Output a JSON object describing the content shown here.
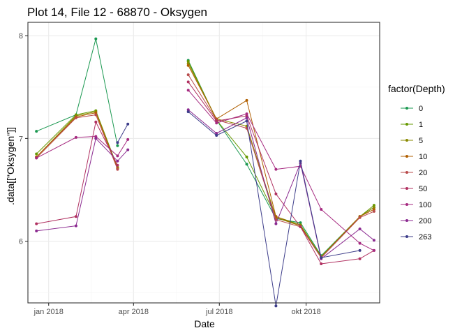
{
  "chart_data": {
    "type": "line",
    "title": "Plot 14, File 12 - 68870  -  Oksygen",
    "xlabel": "Date",
    "ylabel": ".data[[\"Oksygen\"]]",
    "x_type": "date",
    "xlim": [
      "2017-12-10",
      "2018-12-18"
    ],
    "ylim": [
      5.4,
      8.13
    ],
    "x_ticks": [
      {
        "date": "2018-01-01",
        "label": "jan 2018"
      },
      {
        "date": "2018-04-01",
        "label": "apr 2018"
      },
      {
        "date": "2018-07-01",
        "label": "jul 2018"
      },
      {
        "date": "2018-10-01",
        "label": "okt 2018"
      }
    ],
    "y_ticks": [
      6,
      7,
      8
    ],
    "grid": true,
    "legend": {
      "title": "factor(Depth)",
      "position": "right"
    },
    "series": [
      {
        "name": "0",
        "color": "#1a9850",
        "segments": [
          [
            [
              "2017-12-19",
              7.07
            ],
            [
              "2018-01-30",
              7.23
            ],
            [
              "2018-02-20",
              7.97
            ],
            [
              "2018-03-15",
              6.93
            ]
          ],
          [
            [
              "2018-05-29",
              7.76
            ],
            [
              "2018-06-28",
              7.18
            ],
            [
              "2018-07-30",
              6.75
            ],
            [
              "2018-08-30",
              6.22
            ],
            [
              "2018-09-25",
              6.18
            ],
            [
              "2018-10-17",
              5.86
            ],
            [
              "2018-11-27",
              6.24
            ],
            [
              "2018-12-12",
              6.33
            ]
          ]
        ]
      },
      {
        "name": "1",
        "color": "#669900",
        "segments": [
          [
            [
              "2017-12-19",
              6.85
            ],
            [
              "2018-01-30",
              7.23
            ],
            [
              "2018-02-20",
              7.27
            ],
            [
              "2018-03-15",
              6.72
            ]
          ],
          [
            [
              "2018-05-29",
              7.75
            ],
            [
              "2018-06-28",
              7.18
            ],
            [
              "2018-07-30",
              6.82
            ],
            [
              "2018-08-30",
              6.24
            ],
            [
              "2018-09-25",
              6.16
            ],
            [
              "2018-10-17",
              5.85
            ],
            [
              "2018-11-27",
              6.24
            ],
            [
              "2018-12-12",
              6.35
            ]
          ]
        ]
      },
      {
        "name": "5",
        "color": "#8a8a00",
        "segments": [
          [
            [
              "2017-12-19",
              6.82
            ],
            [
              "2018-01-30",
              7.22
            ],
            [
              "2018-02-20",
              7.26
            ],
            [
              "2018-03-15",
              6.71
            ]
          ],
          [
            [
              "2018-05-29",
              7.73
            ],
            [
              "2018-06-28",
              7.19
            ],
            [
              "2018-07-30",
              7.12
            ],
            [
              "2018-08-30",
              6.23
            ],
            [
              "2018-09-25",
              6.15
            ],
            [
              "2018-10-17",
              5.85
            ],
            [
              "2018-11-27",
              6.24
            ],
            [
              "2018-12-12",
              6.33
            ]
          ]
        ]
      },
      {
        "name": "10",
        "color": "#b05f00",
        "segments": [
          [
            [
              "2017-12-19",
              6.82
            ],
            [
              "2018-01-30",
              7.21
            ],
            [
              "2018-02-20",
              7.25
            ],
            [
              "2018-03-15",
              6.71
            ]
          ],
          [
            [
              "2018-05-29",
              7.71
            ],
            [
              "2018-06-28",
              7.19
            ],
            [
              "2018-07-30",
              7.37
            ],
            [
              "2018-08-30",
              6.24
            ],
            [
              "2018-09-25",
              6.15
            ],
            [
              "2018-10-17",
              5.84
            ],
            [
              "2018-11-27",
              6.24
            ],
            [
              "2018-12-12",
              6.31
            ]
          ]
        ]
      },
      {
        "name": "20",
        "color": "#b84b4b",
        "segments": [
          [
            [
              "2017-12-19",
              6.81
            ],
            [
              "2018-01-30",
              7.2
            ],
            [
              "2018-02-20",
              7.23
            ],
            [
              "2018-03-15",
              6.7
            ]
          ],
          [
            [
              "2018-05-29",
              7.62
            ],
            [
              "2018-06-28",
              7.18
            ],
            [
              "2018-07-30",
              7.1
            ],
            [
              "2018-08-30",
              6.21
            ],
            [
              "2018-09-25",
              6.14
            ],
            [
              "2018-10-17",
              5.84
            ],
            [
              "2018-11-27",
              6.23
            ],
            [
              "2018-12-12",
              6.29
            ]
          ]
        ]
      },
      {
        "name": "50",
        "color": "#b03060",
        "segments": [
          [
            [
              "2017-12-19",
              6.17
            ],
            [
              "2018-01-30",
              6.24
            ],
            [
              "2018-02-20",
              7.16
            ],
            [
              "2018-03-15",
              6.74
            ]
          ],
          [
            [
              "2018-05-29",
              7.55
            ],
            [
              "2018-06-28",
              7.17
            ],
            [
              "2018-07-30",
              7.22
            ],
            [
              "2018-08-30",
              6.46
            ],
            [
              "2018-09-25",
              6.14
            ],
            [
              "2018-10-17",
              5.78
            ],
            [
              "2018-11-27",
              5.83
            ],
            [
              "2018-12-12",
              5.91
            ]
          ]
        ]
      },
      {
        "name": "100",
        "color": "#a62a80",
        "segments": [
          [
            [
              "2017-12-19",
              6.81
            ],
            [
              "2018-01-30",
              7.01
            ],
            [
              "2018-02-20",
              7.02
            ],
            [
              "2018-03-15",
              6.83
            ],
            [
              "2018-03-26",
              6.99
            ]
          ],
          [
            [
              "2018-05-29",
              7.47
            ],
            [
              "2018-06-28",
              7.15
            ],
            [
              "2018-07-30",
              7.24
            ],
            [
              "2018-08-30",
              6.7
            ],
            [
              "2018-09-25",
              6.73
            ],
            [
              "2018-10-17",
              6.31
            ],
            [
              "2018-11-27",
              5.98
            ],
            [
              "2018-12-12",
              5.91
            ]
          ]
        ]
      },
      {
        "name": "200",
        "color": "#8b2a90",
        "segments": [
          [
            [
              "2017-12-19",
              6.1
            ],
            [
              "2018-01-30",
              6.15
            ],
            [
              "2018-02-20",
              7.0
            ],
            [
              "2018-03-15",
              6.78
            ],
            [
              "2018-03-26",
              6.89
            ]
          ],
          [
            [
              "2018-05-29",
              7.28
            ],
            [
              "2018-06-28",
              7.05
            ],
            [
              "2018-07-30",
              7.2
            ],
            [
              "2018-08-30",
              6.17
            ],
            [
              "2018-09-25",
              6.76
            ],
            [
              "2018-10-17",
              5.83
            ],
            [
              "2018-11-27",
              6.12
            ],
            [
              "2018-12-12",
              6.01
            ]
          ]
        ]
      },
      {
        "name": "263",
        "color": "#3d3d8a",
        "segments": [
          [
            [
              "2018-03-15",
              6.96
            ],
            [
              "2018-03-26",
              7.14
            ]
          ],
          [
            [
              "2018-05-29",
              7.26
            ],
            [
              "2018-06-28",
              7.03
            ],
            [
              "2018-07-30",
              7.17
            ],
            [
              "2018-08-30",
              5.37
            ],
            [
              "2018-09-25",
              6.78
            ],
            [
              "2018-10-17",
              5.84
            ],
            [
              "2018-11-27",
              5.91
            ]
          ]
        ]
      }
    ]
  }
}
